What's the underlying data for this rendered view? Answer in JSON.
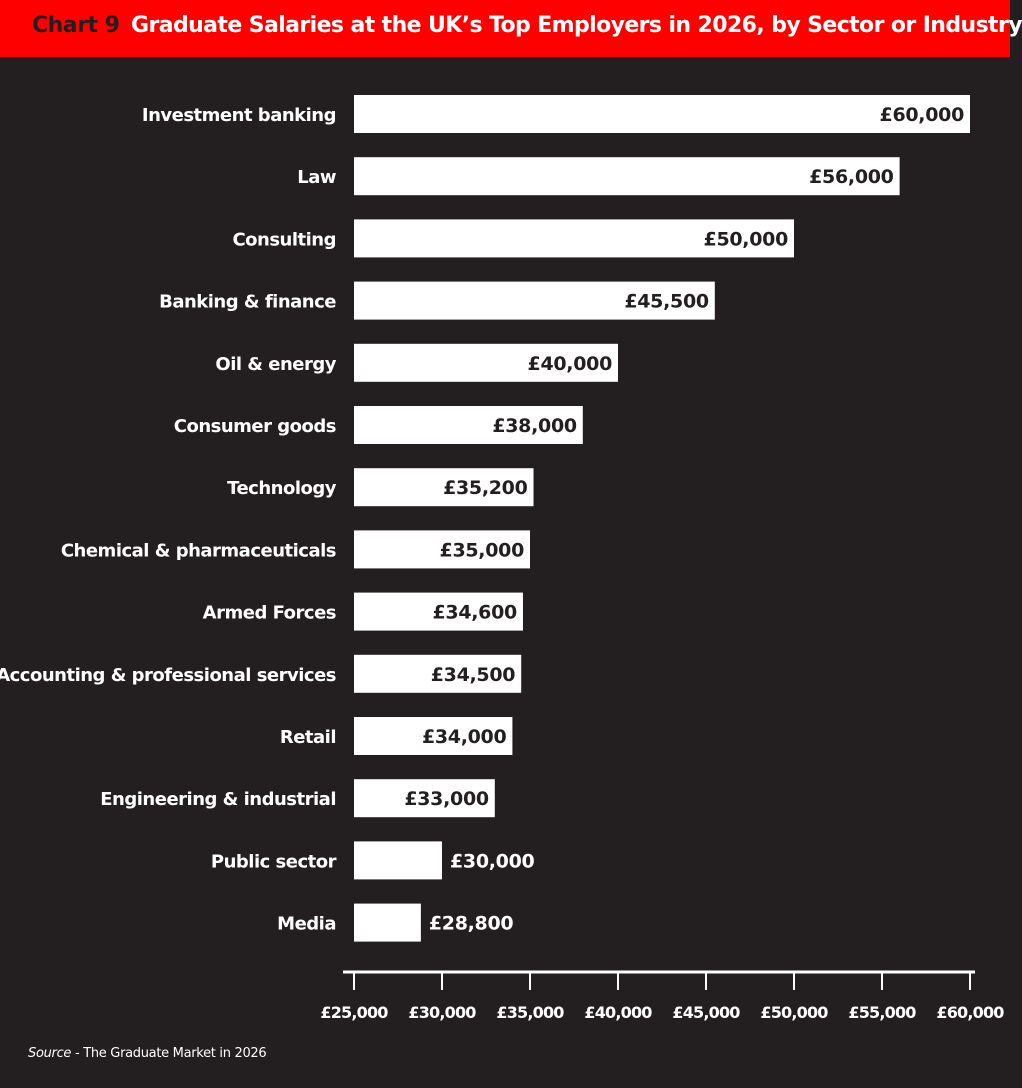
{
  "header": {
    "chart_number": "Chart 9",
    "title": "Graduate Salaries at the UK’s Top Employers in 2026, by Sector or Industry"
  },
  "source": {
    "label": "Source",
    "text": " - The Graduate Market in 2026"
  },
  "colors": {
    "header": "#ff0000",
    "background": "#231f20",
    "bars": "#ffffff",
    "inside_label": "#231f20",
    "outside_label": "#ffffff"
  },
  "chart_data": {
    "type": "bar",
    "orientation": "horizontal",
    "title": "Graduate Salaries at the UK’s Top Employers in 2026, by Sector or Industry",
    "categories": [
      "Investment banking",
      "Law",
      "Consulting",
      "Banking & finance",
      "Oil & energy",
      "Consumer goods",
      "Technology",
      "Chemical & pharmaceuticals",
      "Armed Forces",
      "Accounting & professional services",
      "Retail",
      "Engineering & industrial",
      "Public sector",
      "Media"
    ],
    "values": [
      60000,
      56000,
      50000,
      45500,
      40000,
      38000,
      35200,
      35000,
      34600,
      34500,
      34000,
      33000,
      30000,
      28800
    ],
    "data_labels": [
      "£60,000",
      "£56,000",
      "£50,000",
      "£45,500",
      "£40,000",
      "£38,000",
      "£35,200",
      "£35,000",
      "£34,600",
      "£34,500",
      "£34,000",
      "£33,000",
      "£30,000",
      "£28,800"
    ],
    "xlim": [
      25000,
      60000
    ],
    "x_ticks": [
      25000,
      30000,
      35000,
      40000,
      45000,
      50000,
      55000,
      60000
    ],
    "x_tick_labels": [
      "£25,000",
      "£30,000",
      "£35,000",
      "£40,000",
      "£45,000",
      "£50,000",
      "£55,000",
      "£60,000"
    ],
    "xlabel": "",
    "ylabel": "",
    "grid": false,
    "legend": "none"
  }
}
